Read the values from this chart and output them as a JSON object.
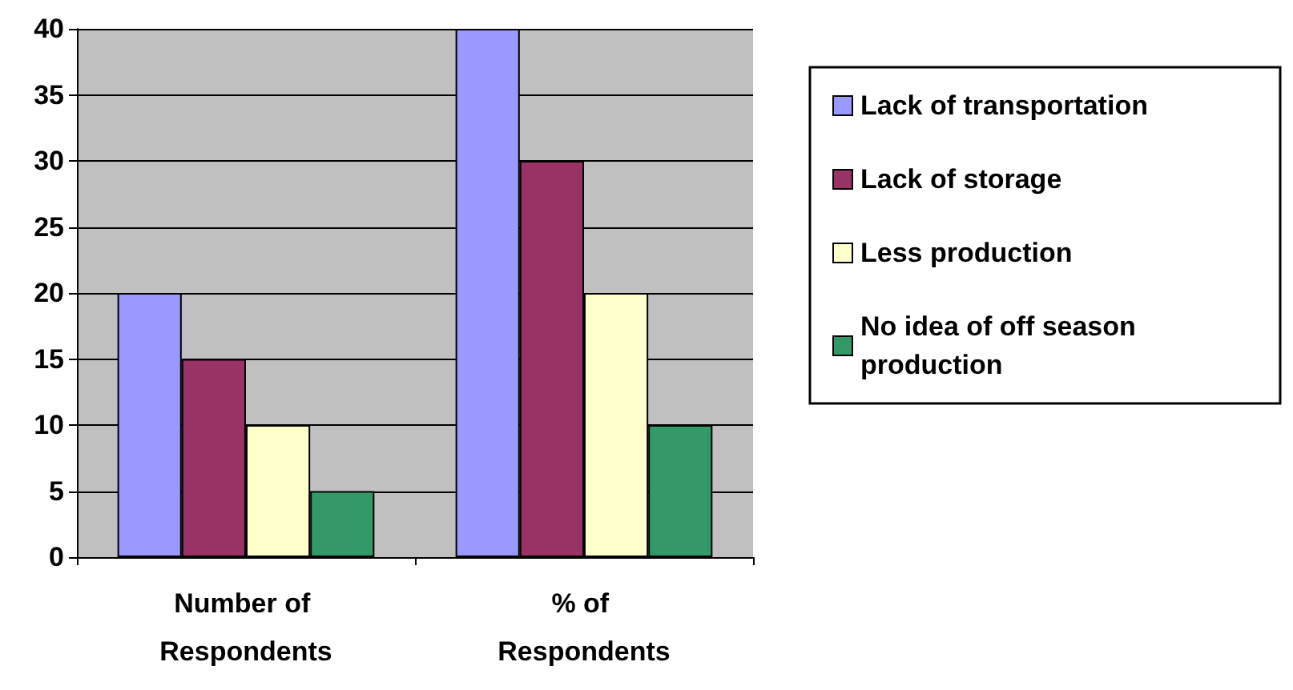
{
  "chart_data": {
    "type": "bar",
    "categories": [
      "Number of Respondents",
      "% of Respondents"
    ],
    "series": [
      {
        "name": "Lack of transportation",
        "color": "#9999ff",
        "values": [
          20,
          40
        ]
      },
      {
        "name": "Lack of storage",
        "color": "#993366",
        "values": [
          15,
          30
        ]
      },
      {
        "name": "Less production",
        "color": "#ffffcc",
        "values": [
          10,
          20
        ]
      },
      {
        "name": "No idea of off season production",
        "color": "#339966",
        "values": [
          5,
          10
        ]
      }
    ],
    "ylim": [
      0,
      40
    ],
    "yticks": [
      0,
      5,
      10,
      15,
      20,
      25,
      30,
      35,
      40
    ],
    "grid": "y",
    "legend": "right"
  }
}
